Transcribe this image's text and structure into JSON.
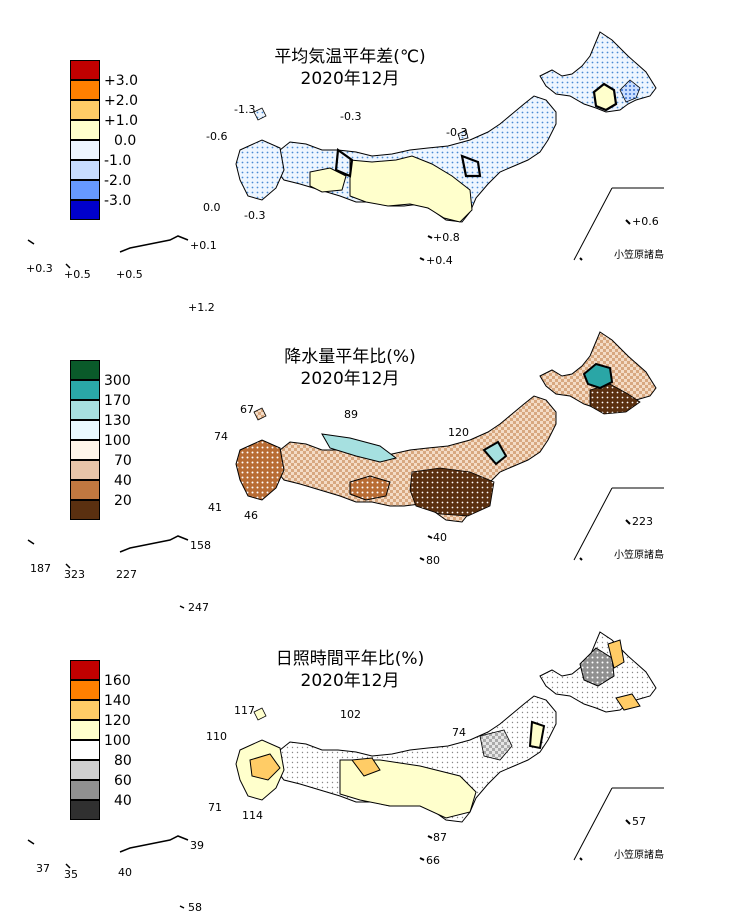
{
  "panels": [
    {
      "id": "temp",
      "title": "平均気温平年差(℃)",
      "subtitle": "2020年12月",
      "legend": [
        {
          "label": "+3.0",
          "color": "#c00000"
        },
        {
          "label": "+2.0",
          "color": "#ff8000"
        },
        {
          "label": "+1.0",
          "color": "#ffcc66"
        },
        {
          "label": "0.0",
          "color": "#ffffcc"
        },
        {
          "label": "-1.0",
          "color": "#e6f3ff"
        },
        {
          "label": "-2.0",
          "color": "#99c2ff"
        },
        {
          "label": "-3.0",
          "color": "#3366ff"
        },
        {
          "label": "",
          "color": "#0000cc"
        }
      ],
      "values": [
        "-1.3",
        "-0.3",
        "-0.6",
        "-0.3",
        "0.0",
        "-0.3",
        "+0.8",
        "+0.4",
        "+0.6",
        "+0.1",
        "+0.3",
        "+0.5",
        "+0.5",
        "+1.2"
      ],
      "ogasawara": "小笠原諸島"
    },
    {
      "id": "precip",
      "title": "降水量平年比(%)",
      "subtitle": "2020年12月",
      "legend": [
        {
          "label": "300",
          "color": "#0a5a2a"
        },
        {
          "label": "170",
          "color": "#2aa6a6"
        },
        {
          "label": "130",
          "color": "#a6e0e0"
        },
        {
          "label": "100",
          "color": "#eafaff"
        },
        {
          "label": "70",
          "color": "#fff6ea"
        },
        {
          "label": "40",
          "color": "#e8c4a8"
        },
        {
          "label": "20",
          "color": "#c07840"
        },
        {
          "label": "",
          "color": "#5a3010"
        }
      ],
      "values": [
        "67",
        "89",
        "74",
        "120",
        "41",
        "46",
        "40",
        "80",
        "223",
        "158",
        "187",
        "323",
        "227",
        "247"
      ],
      "ogasawara": "小笠原諸島"
    },
    {
      "id": "sun",
      "title": "日照時間平年比(%)",
      "subtitle": "2020年12月",
      "legend": [
        {
          "label": "160",
          "color": "#c00000"
        },
        {
          "label": "140",
          "color": "#ff8000"
        },
        {
          "label": "120",
          "color": "#ffcc66"
        },
        {
          "label": "100",
          "color": "#ffffcc"
        },
        {
          "label": "80",
          "color": "#ffffff"
        },
        {
          "label": "60",
          "color": "#d0d0d0"
        },
        {
          "label": "40",
          "color": "#909090"
        },
        {
          "label": "",
          "color": "#303030"
        }
      ],
      "values": [
        "117",
        "102",
        "110",
        "74",
        "71",
        "114",
        "87",
        "66",
        "57",
        "39",
        "37",
        "35",
        "40",
        "58"
      ],
      "ogasawara": "小笠原諸島"
    }
  ]
}
